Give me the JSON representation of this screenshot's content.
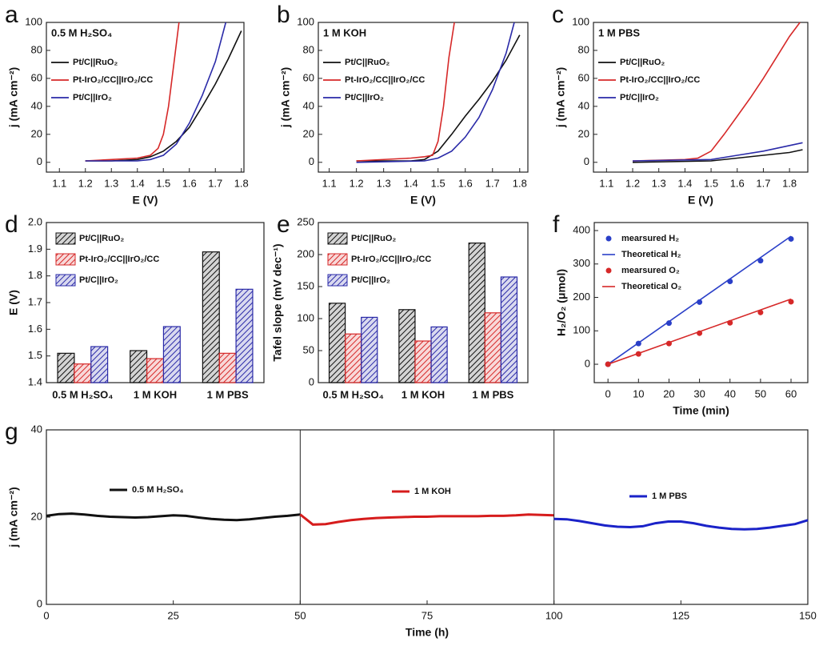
{
  "chart_data": [
    {
      "type": "line",
      "panel_label": "a",
      "annotation": "0.5 M H₂SO₄",
      "annotation_color": "#2e8b2e",
      "x_label": "E (V)",
      "y_label": "j (mA cm⁻²)",
      "xlim": [
        1.05,
        1.81
      ],
      "ylim": [
        -7,
        100
      ],
      "xticks": [
        1.1,
        1.2,
        1.3,
        1.4,
        1.5,
        1.6,
        1.7,
        1.8
      ],
      "yticks": [
        0,
        20,
        40,
        60,
        80,
        100
      ],
      "series": [
        {
          "name": "Pt/C||RuO₂",
          "color": "#111111",
          "x": [
            1.2,
            1.3,
            1.4,
            1.45,
            1.5,
            1.55,
            1.6,
            1.65,
            1.7,
            1.75,
            1.8
          ],
          "values": [
            1,
            1,
            2,
            4,
            8,
            15,
            25,
            40,
            56,
            74,
            94
          ]
        },
        {
          "name": "Pt-IrO₂/CC||IrO₂/CC",
          "color": "#d62828",
          "x": [
            1.2,
            1.3,
            1.4,
            1.45,
            1.48,
            1.5,
            1.52,
            1.54,
            1.56
          ],
          "values": [
            1,
            2,
            3,
            5,
            10,
            20,
            40,
            70,
            100
          ]
        },
        {
          "name": "Pt/C||IrO₂",
          "color": "#2a2aa8",
          "x": [
            1.2,
            1.3,
            1.4,
            1.45,
            1.5,
            1.55,
            1.6,
            1.65,
            1.7,
            1.74
          ],
          "values": [
            1,
            1,
            1,
            2,
            5,
            13,
            28,
            48,
            72,
            100
          ]
        }
      ]
    },
    {
      "type": "line",
      "panel_label": "b",
      "annotation": "1 M KOH",
      "annotation_color": "#2e8b2e",
      "x_label": "E (V)",
      "y_label": "j (mA cm⁻²)",
      "xlim": [
        1.06,
        1.83
      ],
      "ylim": [
        -7,
        100
      ],
      "xticks": [
        1.1,
        1.2,
        1.3,
        1.4,
        1.5,
        1.6,
        1.7,
        1.8
      ],
      "yticks": [
        0,
        20,
        40,
        60,
        80,
        100
      ],
      "series": [
        {
          "name": "Pt/C||RuO₂",
          "color": "#111111",
          "x": [
            1.2,
            1.4,
            1.45,
            1.5,
            1.55,
            1.6,
            1.65,
            1.7,
            1.75,
            1.8
          ],
          "values": [
            1,
            1,
            2,
            8,
            20,
            33,
            45,
            58,
            73,
            91
          ]
        },
        {
          "name": "Pt-IrO₂/CC||IrO₂/CC",
          "color": "#d62828",
          "x": [
            1.2,
            1.4,
            1.45,
            1.48,
            1.5,
            1.52,
            1.54,
            1.56
          ],
          "values": [
            1,
            3,
            4,
            5,
            15,
            40,
            75,
            100
          ]
        },
        {
          "name": "Pt/C||IrO₂",
          "color": "#2a2aa8",
          "x": [
            1.2,
            1.45,
            1.5,
            1.55,
            1.6,
            1.65,
            1.7,
            1.75,
            1.78
          ],
          "values": [
            0,
            1,
            3,
            8,
            18,
            32,
            52,
            78,
            100
          ]
        }
      ]
    },
    {
      "type": "line",
      "panel_label": "c",
      "annotation": "1 M PBS",
      "annotation_color": "#2e8b2e",
      "x_label": "E (V)",
      "y_label": "j (mA cm⁻²)",
      "xlim": [
        1.05,
        1.87
      ],
      "ylim": [
        -7,
        100
      ],
      "xticks": [
        1.1,
        1.2,
        1.3,
        1.4,
        1.5,
        1.6,
        1.7,
        1.8
      ],
      "yticks": [
        0,
        20,
        40,
        60,
        80,
        100
      ],
      "series": [
        {
          "name": "Pt/C||RuO₂",
          "color": "#111111",
          "x": [
            1.2,
            1.5,
            1.6,
            1.7,
            1.8,
            1.85
          ],
          "values": [
            0,
            1,
            3,
            5,
            7,
            9
          ]
        },
        {
          "name": "Pt-IrO₂/CC||IrO₂/CC",
          "color": "#d62828",
          "x": [
            1.2,
            1.4,
            1.45,
            1.5,
            1.55,
            1.6,
            1.65,
            1.7,
            1.75,
            1.8,
            1.84
          ],
          "values": [
            1,
            2,
            3,
            8,
            20,
            33,
            46,
            60,
            75,
            90,
            100
          ]
        },
        {
          "name": "Pt/C||IrO₂",
          "color": "#2a2aa8",
          "x": [
            1.2,
            1.5,
            1.6,
            1.7,
            1.8,
            1.85
          ],
          "values": [
            1,
            2,
            5,
            8,
            12,
            14
          ]
        }
      ]
    },
    {
      "type": "bar",
      "panel_label": "d",
      "y_label": "E (V)",
      "ylim": [
        1.4,
        2.0
      ],
      "yticks": [
        1.4,
        1.5,
        1.6,
        1.7,
        1.8,
        1.9,
        {
          "value": 2,
          "label": "2.0"
        }
      ],
      "categories": [
        "0.5 M H₂SO₄",
        "1 M KOH",
        "1 M PBS"
      ],
      "series": [
        {
          "name": "Pt/C||RuO₂",
          "color": "#111111",
          "values": [
            1.51,
            1.52,
            1.89
          ]
        },
        {
          "name": "Pt-IrO₂/CC||IrO₂/CC",
          "color": "#d62828",
          "values": [
            1.47,
            1.49,
            1.51
          ]
        },
        {
          "name": "Pt/C||IrO₂",
          "color": "#2a2aa8",
          "values": [
            1.535,
            1.61,
            1.75
          ]
        }
      ]
    },
    {
      "type": "bar",
      "panel_label": "e",
      "y_label": "Tafel slope (mV dec⁻¹)",
      "ylim": [
        0,
        250
      ],
      "yticks": [
        0,
        50,
        100,
        150,
        200,
        250
      ],
      "categories": [
        "0.5 M H₂SO₄",
        "1 M KOH",
        "1 M PBS"
      ],
      "series": [
        {
          "name": "Pt/C||RuO₂",
          "color": "#111111",
          "values": [
            124,
            114,
            218
          ]
        },
        {
          "name": "Pt-IrO₂/CC||IrO₂/CC",
          "color": "#d62828",
          "values": [
            76,
            65,
            109
          ]
        },
        {
          "name": "Pt/C||IrO₂",
          "color": "#2a2aa8",
          "values": [
            102,
            87,
            165
          ]
        }
      ]
    },
    {
      "type": "scatter",
      "panel_label": "f",
      "x_label": "Time (min)",
      "y_label": "H₂/O₂ (μmol)",
      "xlim": [
        -4.5,
        65.5
      ],
      "ylim": [
        -55,
        424
      ],
      "xticks": [
        0,
        10,
        20,
        30,
        40,
        50,
        60
      ],
      "yticks": [
        0,
        100,
        200,
        300,
        400
      ],
      "series": [
        {
          "name": "mearsured H₂",
          "color": "#2a3fc8",
          "mode": "markers",
          "x": [
            0,
            10,
            20,
            30,
            40,
            50,
            60
          ],
          "values": [
            0,
            62,
            123,
            186,
            248,
            310,
            375
          ]
        },
        {
          "name": "Theoretical H₂",
          "color": "#2a3fc8",
          "mode": "lines",
          "x": [
            0,
            60
          ],
          "values": [
            0,
            383
          ]
        },
        {
          "name": "mearsured O₂",
          "color": "#d62828",
          "mode": "markers",
          "x": [
            0,
            10,
            20,
            30,
            40,
            50,
            60
          ],
          "values": [
            0,
            31,
            62,
            93,
            124,
            155,
            187
          ]
        },
        {
          "name": "Theoretical O₂",
          "color": "#d62828",
          "mode": "lines",
          "x": [
            0,
            60
          ],
          "values": [
            0,
            195
          ]
        }
      ]
    },
    {
      "type": "timeseries",
      "panel_label": "g",
      "x_label": "Time (h)",
      "y_label": "j (mA cm⁻²)",
      "xlim": [
        0,
        150
      ],
      "ylim": [
        0,
        40
      ],
      "xticks": [
        0,
        25,
        50,
        75,
        100,
        125,
        150
      ],
      "yticks": [
        0,
        20,
        40
      ],
      "series": [
        {
          "name": "0.5 M H₂SO₄",
          "color": "#111111",
          "x": [
            0,
            2.5,
            5,
            7.5,
            10,
            12.5,
            15,
            17.5,
            20,
            22.5,
            25,
            27.5,
            30,
            32.5,
            35,
            37.5,
            40,
            42.5,
            45,
            47.5,
            50
          ],
          "values": [
            20.3,
            20.7,
            20.8,
            20.6,
            20.3,
            20.1,
            20.0,
            19.9,
            20.0,
            20.2,
            20.4,
            20.3,
            19.9,
            19.6,
            19.4,
            19.3,
            19.5,
            19.8,
            20.1,
            20.3,
            20.6
          ]
        },
        {
          "name": "1 M KOH",
          "color": "#d61c1c",
          "x": [
            50,
            52.5,
            55,
            57.5,
            60,
            62.5,
            65,
            67.5,
            70,
            72.5,
            75,
            77.5,
            80,
            82.5,
            85,
            87.5,
            90,
            92.5,
            95,
            97.5,
            100
          ],
          "values": [
            20.6,
            18.3,
            18.4,
            18.9,
            19.3,
            19.6,
            19.8,
            19.9,
            20.0,
            20.1,
            20.1,
            20.2,
            20.2,
            20.2,
            20.2,
            20.3,
            20.3,
            20.4,
            20.6,
            20.5,
            20.4
          ]
        },
        {
          "name": "1 M PBS",
          "color": "#1a22c8",
          "x": [
            100,
            102.5,
            105,
            107.5,
            110,
            112.5,
            115,
            117.5,
            120,
            122.5,
            125,
            127.5,
            130,
            132.5,
            135,
            137.5,
            140,
            142.5,
            145,
            147.5,
            150
          ],
          "values": [
            19.6,
            19.5,
            19.1,
            18.6,
            18.1,
            17.8,
            17.7,
            17.9,
            18.6,
            19.0,
            19.0,
            18.6,
            18.0,
            17.6,
            17.3,
            17.2,
            17.3,
            17.6,
            18.0,
            18.4,
            19.3
          ]
        }
      ]
    }
  ]
}
